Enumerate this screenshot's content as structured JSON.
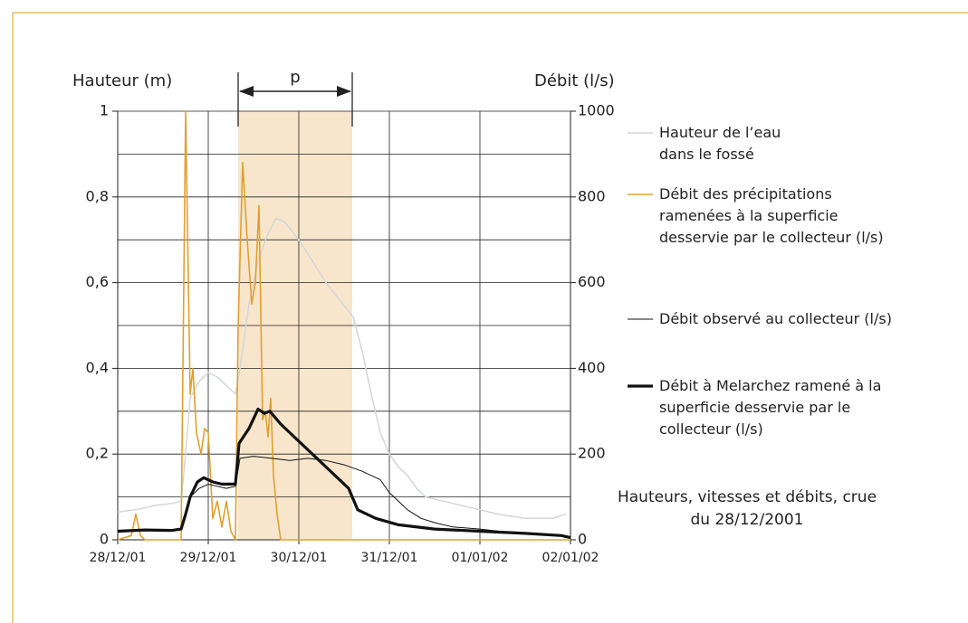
{
  "chart_data": {
    "type": "line",
    "caption": "Hauteurs, vitesses et débits, crue du 28/12/2001",
    "y_label": "Hauteur (m)",
    "y2_label": "Débit (l/s)",
    "annotation": {
      "label": "p",
      "x": [
        1.33,
        2.59
      ],
      "color": "#f8e6cc"
    },
    "xlim": [
      0,
      5
    ],
    "xticks": [
      {
        "value": 0,
        "label": "28/12/01"
      },
      {
        "value": 1,
        "label": "29/12/01"
      },
      {
        "value": 2,
        "label": "30/12/01"
      },
      {
        "value": 3,
        "label": "31/12/01"
      },
      {
        "value": 4,
        "label": "01/01/02"
      },
      {
        "value": 5,
        "label": "02/01/02"
      }
    ],
    "ylim": [
      0,
      1
    ],
    "yticks": [
      0,
      {
        "value": 0.2,
        "label": "0,2"
      },
      {
        "value": 0.4,
        "label": "0,4"
      },
      {
        "value": 0.6,
        "label": "0,6"
      },
      {
        "value": 0.8,
        "label": "0,8"
      },
      1
    ],
    "y_minor_ticks": [
      0.1,
      0.3,
      0.5,
      0.7,
      0.9
    ],
    "y2lim": [
      0,
      1000
    ],
    "y2ticks": [
      0,
      200,
      400,
      600,
      800,
      1000
    ],
    "grid": true,
    "series": [
      {
        "name": "Hauteur de l’eau dans le fossé",
        "color": "#d3d6da",
        "width": 1.5,
        "x": [
          0,
          0.2,
          0.4,
          0.6,
          0.7,
          0.75,
          0.8,
          0.9,
          1.0,
          1.1,
          1.2,
          1.3,
          1.35,
          1.45,
          1.55,
          1.65,
          1.75,
          1.85,
          2.0,
          2.15,
          2.3,
          2.45,
          2.6,
          2.7,
          2.8,
          2.9,
          3.0,
          3.1,
          3.2,
          3.3,
          3.4,
          3.6,
          3.8,
          4.0,
          4.2,
          4.5,
          4.8,
          4.95
        ],
        "values": [
          0.065,
          0.07,
          0.08,
          0.085,
          0.09,
          0.2,
          0.33,
          0.37,
          0.39,
          0.38,
          0.36,
          0.34,
          0.4,
          0.55,
          0.65,
          0.71,
          0.75,
          0.74,
          0.7,
          0.65,
          0.6,
          0.56,
          0.52,
          0.44,
          0.34,
          0.25,
          0.2,
          0.17,
          0.15,
          0.12,
          0.1,
          0.09,
          0.08,
          0.07,
          0.06,
          0.05,
          0.05,
          0.06
        ]
      },
      {
        "name": "Débit des précipitations ramenées à la superficie desservie par le collecteur (l/s)",
        "color": "#e0a030",
        "width": 1.6,
        "axis": "y2",
        "x": [
          0,
          0.15,
          0.2,
          0.25,
          0.3,
          0.7,
          0.75,
          0.8,
          0.83,
          0.87,
          0.92,
          0.96,
          1.0,
          1.05,
          1.1,
          1.15,
          1.2,
          1.25,
          1.3,
          1.33,
          1.38,
          1.43,
          1.48,
          1.52,
          1.56,
          1.6,
          1.63,
          1.66,
          1.69,
          1.72,
          1.76,
          1.8,
          2.0,
          5.0
        ],
        "values": [
          0,
          10,
          60,
          10,
          0,
          0,
          1000,
          340,
          400,
          250,
          200,
          260,
          250,
          50,
          90,
          30,
          90,
          20,
          0,
          500,
          880,
          700,
          550,
          600,
          780,
          280,
          300,
          240,
          330,
          150,
          60,
          0,
          0,
          0
        ]
      },
      {
        "name": "Débit observé au collecteur (l/s)",
        "color": "#111111",
        "width": 1,
        "axis": "y2",
        "x": [
          0,
          0.3,
          0.6,
          0.7,
          0.75,
          0.8,
          0.9,
          1.0,
          1.1,
          1.2,
          1.3,
          1.35,
          1.5,
          1.7,
          1.9,
          2.1,
          2.3,
          2.5,
          2.7,
          2.9,
          3.0,
          3.1,
          3.2,
          3.35,
          3.5,
          3.7,
          4.0,
          4.3,
          4.6,
          4.9
        ],
        "values": [
          20,
          22,
          20,
          25,
          60,
          100,
          120,
          130,
          125,
          120,
          125,
          190,
          195,
          190,
          185,
          190,
          185,
          175,
          160,
          140,
          110,
          90,
          70,
          50,
          40,
          30,
          25,
          18,
          14,
          10
        ]
      },
      {
        "name": "Débit à Melarchez ramené à la superficie desservie par le collecteur (l/s)",
        "color": "#111111",
        "width": 3.2,
        "axis": "y2",
        "x": [
          0,
          0.3,
          0.6,
          0.7,
          0.75,
          0.8,
          0.88,
          0.95,
          1.05,
          1.15,
          1.3,
          1.34,
          1.45,
          1.55,
          1.62,
          1.68,
          1.8,
          2.0,
          2.2,
          2.4,
          2.55,
          2.65,
          2.85,
          3.1,
          3.5,
          4.0,
          4.5,
          4.9,
          5.0
        ],
        "values": [
          20,
          23,
          22,
          25,
          60,
          100,
          135,
          145,
          135,
          130,
          130,
          225,
          260,
          305,
          295,
          300,
          270,
          230,
          190,
          150,
          120,
          70,
          50,
          35,
          25,
          20,
          15,
          10,
          5
        ]
      }
    ]
  }
}
